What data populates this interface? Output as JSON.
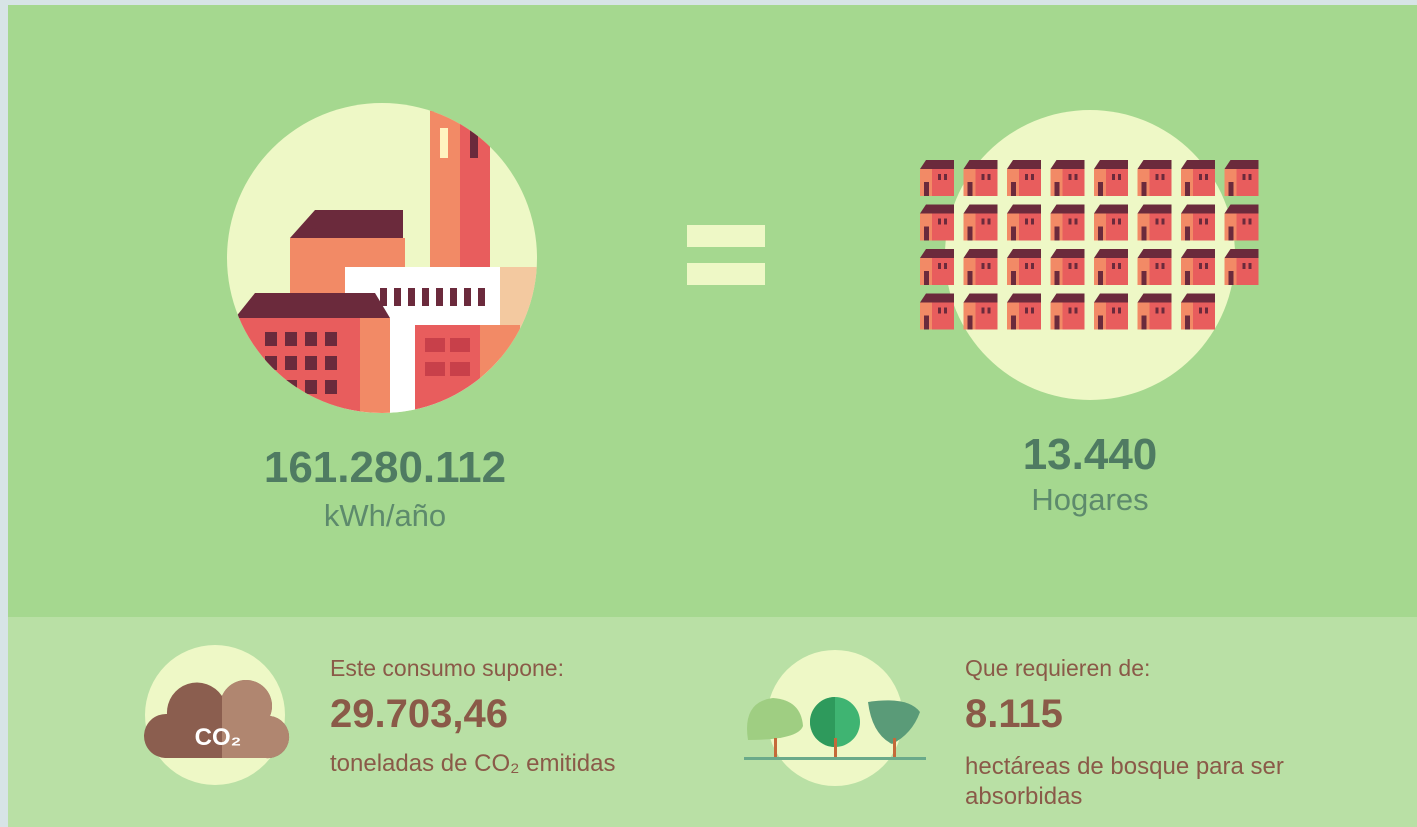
{
  "left": {
    "value": "161.280.112",
    "unit": "kWh/año"
  },
  "right": {
    "value": "13.440",
    "unit": "Hogares"
  },
  "emissions": {
    "intro": "Este consumo supone:",
    "value": "29.703,46",
    "unit": "toneladas de CO₂ emitidas",
    "icon_label": "CO₂"
  },
  "forest": {
    "intro": "Que requieren de:",
    "value": "8.115",
    "unit": "hectáreas de bosque para ser absorbidas"
  }
}
